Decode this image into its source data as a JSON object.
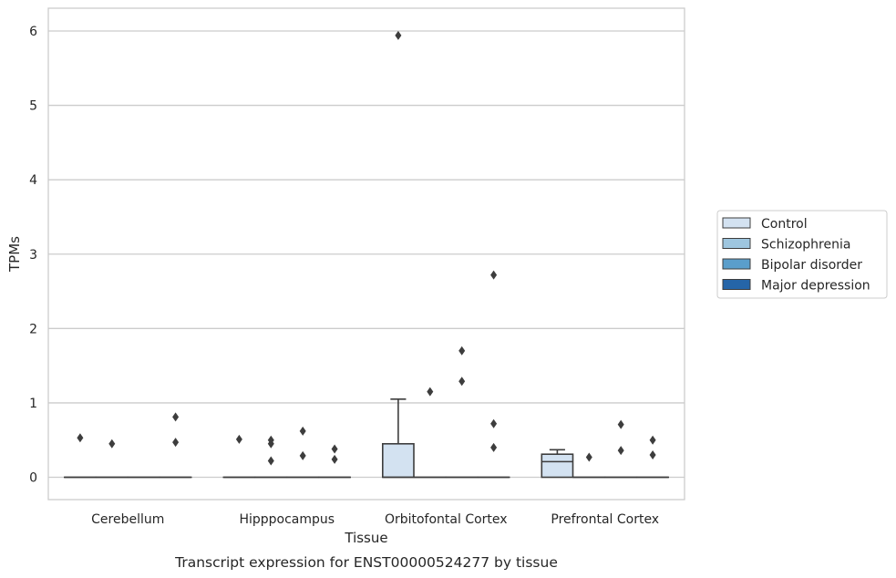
{
  "chart_data": {
    "type": "box",
    "title": "",
    "caption": "Transcript expression for ENST00000524277 by tissue",
    "xlabel": "Tissue",
    "ylabel": "TPMs",
    "ylim": [
      -0.3,
      6.25
    ],
    "yticks": [
      0,
      1,
      2,
      3,
      4,
      5,
      6
    ],
    "grid": "horizontal",
    "legend_position": "right",
    "categories": [
      "Cerebellum",
      "Hipppocampus",
      "Orbitofontal Cortex",
      "Prefrontal Cortex"
    ],
    "series": [
      {
        "name": "Control",
        "color": "#d3e2f1",
        "boxes": [
          {
            "q1": 0,
            "median": 0,
            "q3": 0,
            "whisker_low": 0,
            "whisker_high": 0,
            "outliers": [
              0.53
            ]
          },
          {
            "q1": 0,
            "median": 0,
            "q3": 0,
            "whisker_low": 0,
            "whisker_high": 0,
            "outliers": [
              0.51
            ]
          },
          {
            "q1": 0,
            "median": 0,
            "q3": 0.45,
            "whisker_low": 0,
            "whisker_high": 1.05,
            "outliers": [
              5.94
            ]
          },
          {
            "q1": 0,
            "median": 0.21,
            "q3": 0.31,
            "whisker_low": 0,
            "whisker_high": 0.37,
            "outliers": []
          }
        ]
      },
      {
        "name": "Schizophrenia",
        "color": "#9ec6df",
        "boxes": [
          {
            "q1": 0,
            "median": 0,
            "q3": 0,
            "whisker_low": 0,
            "whisker_high": 0,
            "outliers": [
              0.45
            ]
          },
          {
            "q1": 0,
            "median": 0,
            "q3": 0,
            "whisker_low": 0,
            "whisker_high": 0,
            "outliers": [
              0.22,
              0.45,
              0.5
            ]
          },
          {
            "q1": 0,
            "median": 0,
            "q3": 0,
            "whisker_low": 0,
            "whisker_high": 0,
            "outliers": [
              1.15
            ]
          },
          {
            "q1": 0,
            "median": 0,
            "q3": 0,
            "whisker_low": 0,
            "whisker_high": 0,
            "outliers": [
              0.27
            ]
          }
        ]
      },
      {
        "name": "Bipolar disorder",
        "color": "#5a9ecb",
        "boxes": [
          {
            "q1": 0,
            "median": 0,
            "q3": 0,
            "whisker_low": 0,
            "whisker_high": 0,
            "outliers": []
          },
          {
            "q1": 0,
            "median": 0,
            "q3": 0,
            "whisker_low": 0,
            "whisker_high": 0,
            "outliers": [
              0.29,
              0.62
            ]
          },
          {
            "q1": 0,
            "median": 0,
            "q3": 0,
            "whisker_low": 0,
            "whisker_high": 0,
            "outliers": [
              1.29,
              1.7
            ]
          },
          {
            "q1": 0,
            "median": 0,
            "q3": 0,
            "whisker_low": 0,
            "whisker_high": 0,
            "outliers": [
              0.36,
              0.71
            ]
          }
        ]
      },
      {
        "name": "Major depression",
        "color": "#2565a8",
        "boxes": [
          {
            "q1": 0,
            "median": 0,
            "q3": 0,
            "whisker_low": 0,
            "whisker_high": 0,
            "outliers": [
              0.47,
              0.81
            ]
          },
          {
            "q1": 0,
            "median": 0,
            "q3": 0,
            "whisker_low": 0,
            "whisker_high": 0,
            "outliers": [
              0.24,
              0.38
            ]
          },
          {
            "q1": 0,
            "median": 0,
            "q3": 0,
            "whisker_low": 0,
            "whisker_high": 0,
            "outliers": [
              0.4,
              0.72,
              2.72
            ]
          },
          {
            "q1": 0,
            "median": 0,
            "q3": 0,
            "whisker_low": 0,
            "whisker_high": 0,
            "outliers": [
              0.3,
              0.5
            ]
          }
        ]
      }
    ]
  }
}
